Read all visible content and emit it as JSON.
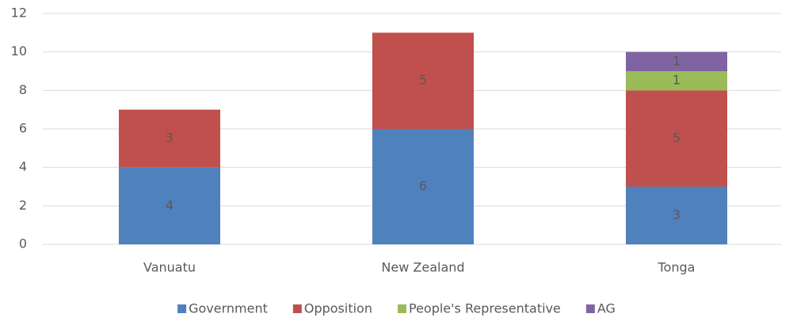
{
  "chart_data": {
    "type": "stacked_bar",
    "categories": [
      "Vanuatu",
      "New Zealand",
      "Tonga"
    ],
    "series": [
      {
        "name": "Government",
        "color": "#4f81bd",
        "values": [
          4,
          6,
          3
        ]
      },
      {
        "name": "Opposition",
        "color": "#c0504d",
        "values": [
          3,
          5,
          5
        ]
      },
      {
        "name": "People's Representative",
        "color": "#9bbb59",
        "values": [
          null,
          null,
          1
        ]
      },
      {
        "name": "AG",
        "color": "#8064a2",
        "values": [
          null,
          null,
          1
        ]
      }
    ],
    "ylim": [
      0,
      12
    ],
    "yticks": [
      0,
      2,
      4,
      6,
      8,
      10,
      12
    ],
    "grid": true,
    "legend": "bottom"
  }
}
